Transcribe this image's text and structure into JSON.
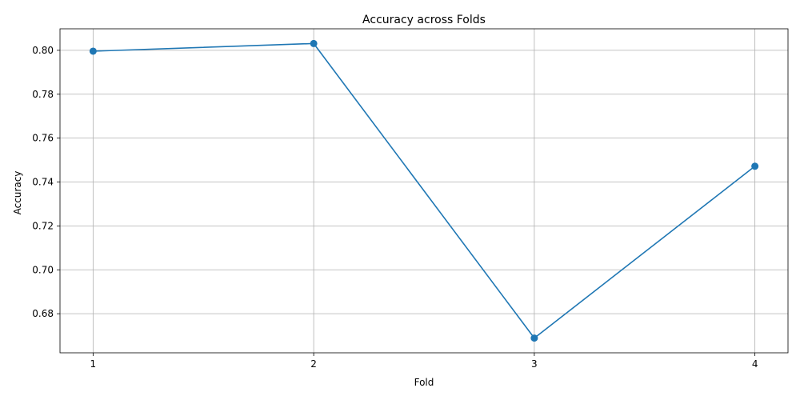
{
  "chart_data": {
    "type": "line",
    "title": "Accuracy across Folds",
    "xlabel": "Fold",
    "ylabel": "Accuracy",
    "x": [
      1,
      2,
      3,
      4
    ],
    "x_tick_labels": [
      "1",
      "2",
      "3",
      "4"
    ],
    "series": [
      {
        "values": [
          0.7996,
          0.8031,
          0.6689,
          0.7472
        ],
        "color": "#1f77b4",
        "marker": "circle"
      }
    ],
    "y_ticks": [
      0.68,
      0.7,
      0.72,
      0.74,
      0.76,
      0.78,
      0.8
    ],
    "y_tick_labels": [
      "0.68",
      "0.70",
      "0.72",
      "0.74",
      "0.76",
      "0.78",
      "0.80"
    ],
    "xlim": [
      0.85,
      4.15
    ],
    "ylim": [
      0.6622,
      0.8098
    ],
    "grid": true,
    "grid_color": "#b0b0b0",
    "axis_color": "#000000"
  }
}
